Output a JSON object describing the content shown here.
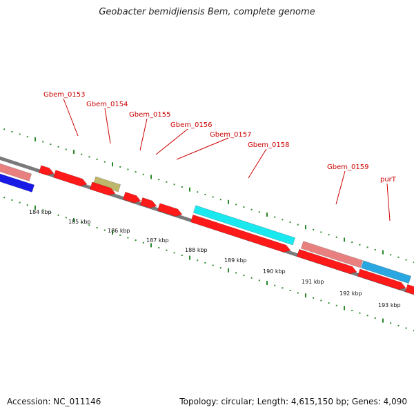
{
  "title": "Geobacter bemidjiensis Bem, complete genome",
  "footer": {
    "accession": "Accession: NC_011146",
    "info": "Topology: circular; Length: 4,615,150 bp; Genes: 4,090"
  },
  "colors": {
    "backbone": "#7a7a7a",
    "tick": "#2a8a2a",
    "cds_red": "#ff1a1a",
    "cds_pink": "#e98080",
    "cds_olive": "#bdb76b",
    "cds_cyan": "#19e8ee",
    "cds_skyblue": "#2aa6e0",
    "cds_blue": "#1a1ae6",
    "label": "#cc0000"
  },
  "genes": [
    {
      "label": "Gbem_0153"
    },
    {
      "label": "Gbem_0154"
    },
    {
      "label": "Gbem_0155"
    },
    {
      "label": "Gbem_0156"
    },
    {
      "label": "Gbem_0157"
    },
    {
      "label": "Gbem_0158"
    },
    {
      "label": "Gbem_0159"
    },
    {
      "label": "purT"
    }
  ],
  "kbp_ticks": [
    {
      "label": "184 kbp"
    },
    {
      "label": "185 kbp"
    },
    {
      "label": "186 kbp"
    },
    {
      "label": "187 kbp"
    },
    {
      "label": "188 kbp"
    },
    {
      "label": "189 kbp"
    },
    {
      "label": "190 kbp"
    },
    {
      "label": "191 kbp"
    },
    {
      "label": "192 kbp"
    },
    {
      "label": "193 kbp"
    }
  ]
}
